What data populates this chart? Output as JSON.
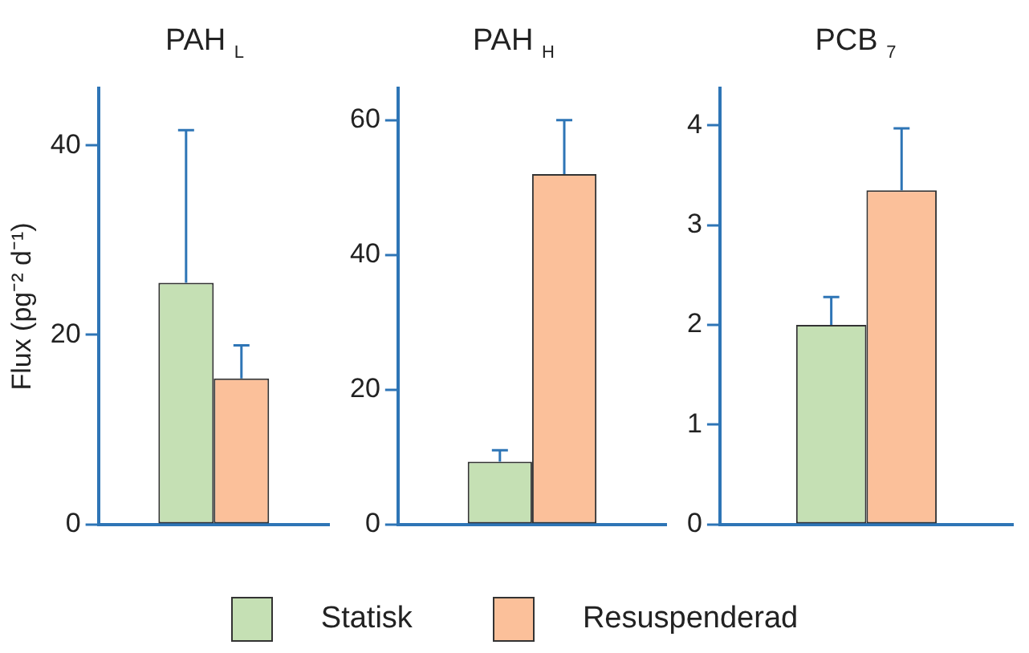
{
  "chart_data": [
    {
      "type": "bar",
      "title": "PAH $_{L}$",
      "ylabel": "Flux (pg⁻² d⁻¹)",
      "categories": [
        null
      ],
      "ylim": [
        0,
        46
      ],
      "yticks": [
        0,
        20,
        40
      ],
      "grid": false,
      "tick_labels": "y",
      "legend": "bottom",
      "series": [
        {
          "name": "Statisk",
          "color": "#c5e0b4",
          "values": [
            25.5
          ],
          "errors": [
            [
              25.5,
              41.6
            ]
          ]
        },
        {
          "name": "Resuspenderad",
          "color": "#fbc09a",
          "values": [
            15.4
          ],
          "errors": [
            [
              15.4,
              18.9
            ]
          ]
        }
      ]
    },
    {
      "type": "bar",
      "title": "PAH $_{H}$",
      "categories": [
        null
      ],
      "ylim": [
        0,
        64.7
      ],
      "yticks": [
        0,
        20,
        40,
        60
      ],
      "grid": false,
      "tick_labels": "y",
      "series": [
        {
          "color": "#c5e0b4",
          "values": [
            9.3
          ],
          "errors": [
            [
              9.3,
              11
            ]
          ]
        },
        {
          "color": "#fbc09a",
          "values": [
            52
          ],
          "errors": [
            [
              52,
              60
            ]
          ]
        }
      ]
    },
    {
      "type": "bar",
      "title": "PCB $_{7}$",
      "categories": [
        null
      ],
      "ylim": [
        0,
        4.37
      ],
      "yticks": [
        0,
        1,
        2,
        3,
        4
      ],
      "grid": false,
      "tick_labels": "y",
      "series": [
        {
          "color": "#c5e0b4",
          "values": [
            2.0
          ],
          "errors": [
            [
              2.0,
              2.28
            ]
          ]
        },
        {
          "color": "#fbc09a",
          "values": [
            3.35
          ],
          "errors": [
            [
              3.35,
              3.97
            ]
          ]
        }
      ]
    }
  ]
}
